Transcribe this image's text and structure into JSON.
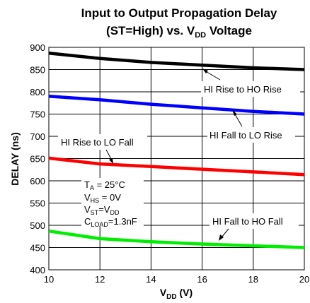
{
  "chart_data": {
    "type": "line",
    "title_line1": "Input to Output Propagation Delay",
    "title_line2_pre": "(ST=High)  vs.  V",
    "title_line2_sub": "DD",
    "title_line2_post": " Voltage",
    "xlabel_main": "V",
    "xlabel_sub": "DD",
    "xlabel_post": " (V)",
    "ylabel": "DELAY (ns)",
    "xlim": [
      10,
      20
    ],
    "ylim": [
      400,
      900
    ],
    "xticks": [
      10,
      12,
      14,
      16,
      18,
      20
    ],
    "yticks": [
      400,
      450,
      500,
      550,
      600,
      650,
      700,
      750,
      800,
      850,
      900
    ],
    "grid": true,
    "series": [
      {
        "name": "HI Rise to HO Rise",
        "color": "#000000",
        "x": [
          10,
          12,
          14,
          16,
          18,
          20
        ],
        "y": [
          887,
          875,
          866,
          860,
          854,
          850
        ]
      },
      {
        "name": "HI Fall to LO Rise",
        "color": "#0000ff",
        "x": [
          10,
          12,
          14,
          16,
          18,
          20
        ],
        "y": [
          790,
          782,
          772,
          764,
          756,
          750
        ]
      },
      {
        "name": "HI Rise to LO Fall",
        "color": "#ff0000",
        "x": [
          10,
          12,
          14,
          16,
          18,
          20
        ],
        "y": [
          651,
          638,
          632,
          626,
          620,
          614
        ]
      },
      {
        "name": "HI Fall to HO Fall",
        "color": "#00ee00",
        "x": [
          10,
          12,
          14,
          16,
          18,
          20
        ],
        "y": [
          487,
          470,
          463,
          458,
          454,
          450
        ]
      }
    ],
    "conditions": [
      {
        "main": "T",
        "sub": "A",
        "post": " = 25°C"
      },
      {
        "main": "V",
        "sub": "HS",
        "post": " = 0V"
      },
      {
        "main": "V",
        "sub": "ST",
        "post": "=V",
        "sub2": "DD"
      },
      {
        "main": "C",
        "sub": "LOAD",
        "post": "=1.3nF"
      }
    ]
  }
}
